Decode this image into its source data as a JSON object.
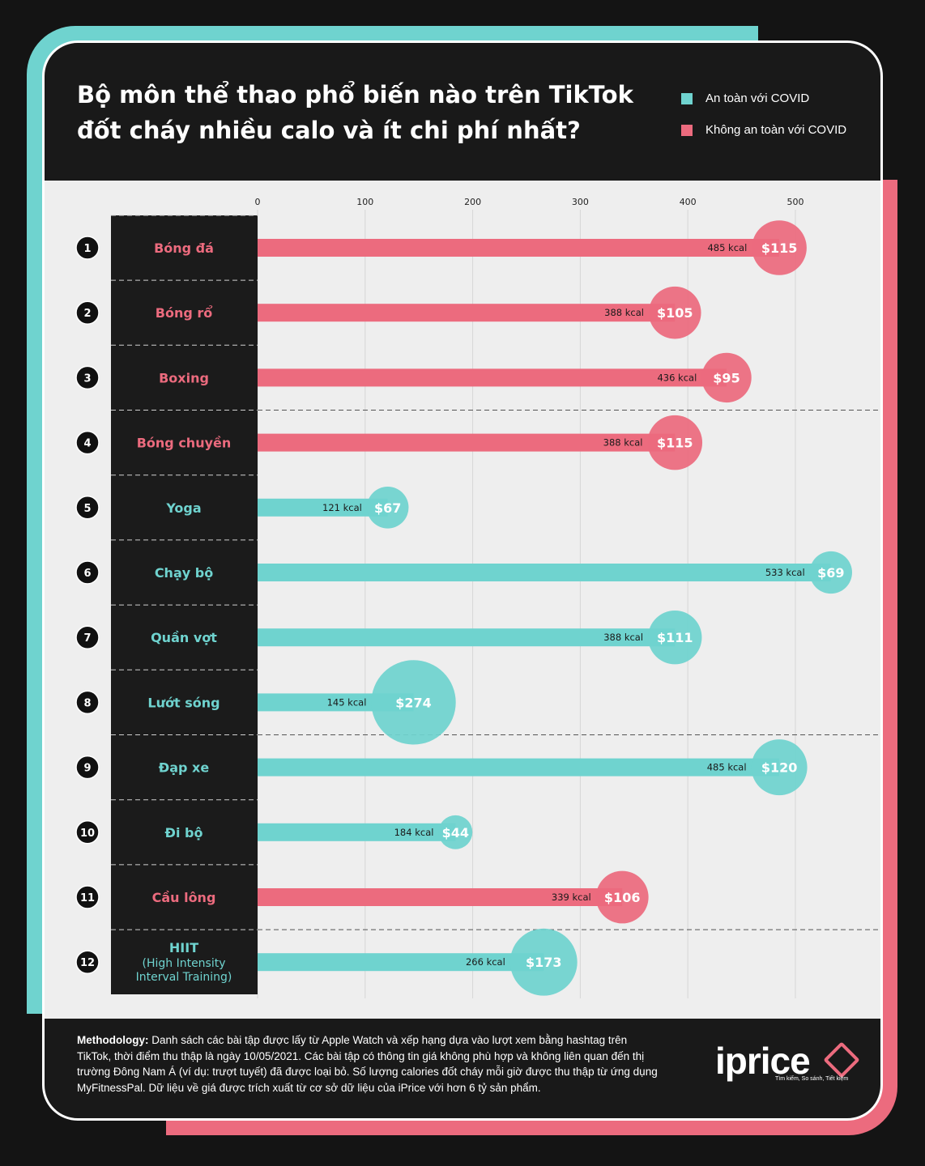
{
  "title_line1": "Bộ môn thể thao phổ biến nào trên TikTok",
  "title_line2": "đốt cháy nhiều calo và ít chi phí nhất?",
  "legend": [
    {
      "label": "An toàn với COVID",
      "color": "#6fd3cf"
    },
    {
      "label": "Không an toàn với COVID",
      "color": "#ec6b7e"
    }
  ],
  "colors": {
    "safe": "#6fd3cf",
    "unsafe": "#ec6b7e",
    "background": "#191919",
    "panel": "#eeeeee"
  },
  "chart_data": {
    "type": "bar",
    "orientation": "horizontal",
    "x_ticks": [
      0,
      100,
      200,
      300,
      400,
      500
    ],
    "xlim": [
      0,
      560
    ],
    "unit": "kcal",
    "grid": true,
    "groups_separated_after": [
      2,
      7,
      10
    ],
    "rows": [
      {
        "rank": "1",
        "name": "Bóng đá",
        "kcal": 485,
        "kcal_label": "485 kcal",
        "price": 115,
        "price_label": "$115",
        "covid_safe": false
      },
      {
        "rank": "2",
        "name": "Bóng rổ",
        "kcal": 388,
        "kcal_label": "388 kcal",
        "price": 105,
        "price_label": "$105",
        "covid_safe": false
      },
      {
        "rank": "3",
        "name": "Boxing",
        "kcal": 436,
        "kcal_label": "436 kcal",
        "price": 95,
        "price_label": "$95",
        "covid_safe": false
      },
      {
        "rank": "4",
        "name": "Bóng chuyền",
        "kcal": 388,
        "kcal_label": "388 kcal",
        "price": 115,
        "price_label": "$115",
        "covid_safe": false
      },
      {
        "rank": "5",
        "name": "Yoga",
        "kcal": 121,
        "kcal_label": "121 kcal",
        "price": 67,
        "price_label": "$67",
        "covid_safe": true
      },
      {
        "rank": "6",
        "name": "Chạy bộ",
        "kcal": 533,
        "kcal_label": "533 kcal",
        "price": 69,
        "price_label": "$69",
        "covid_safe": true
      },
      {
        "rank": "7",
        "name": "Quần vợt",
        "kcal": 388,
        "kcal_label": "388 kcal",
        "price": 111,
        "price_label": "$111",
        "covid_safe": true
      },
      {
        "rank": "8",
        "name": "Lướt sóng",
        "kcal": 145,
        "kcal_label": "145 kcal",
        "price": 274,
        "price_label": "$274",
        "covid_safe": true
      },
      {
        "rank": "9",
        "name": "Đạp xe",
        "kcal": 485,
        "kcal_label": "485 kcal",
        "price": 120,
        "price_label": "$120",
        "covid_safe": true
      },
      {
        "rank": "10",
        "name": "Đi bộ",
        "kcal": 184,
        "kcal_label": "184 kcal",
        "price": 44,
        "price_label": "$44",
        "covid_safe": true
      },
      {
        "rank": "11",
        "name": "Cầu lông",
        "kcal": 339,
        "kcal_label": "339 kcal",
        "price": 106,
        "price_label": "$106",
        "covid_safe": false
      },
      {
        "rank": "12",
        "name": "HIIT",
        "name_sub": [
          "(High Intensity",
          "Interval Training)"
        ],
        "kcal": 266,
        "kcal_label": "266 kcal",
        "price": 173,
        "price_label": "$173",
        "covid_safe": true
      }
    ]
  },
  "footer": {
    "methodology_label": "Methodology:",
    "methodology_text": " Danh sách các bài tập được lấy từ Apple Watch và  xếp hạng dựa vào lượt xem bằng hashtag trên TikTok, thời điểm thu thập là ngày 10/05/2021. Các bài tập có thông tin giá không phù hợp và không liên quan đến thị trường Đông Nam Á (ví dụ: trượt tuyết) đã được loại bỏ. Số lượng calories đốt cháy mỗi giờ được thu thập từ ứng dụng MyFitnessPal. Dữ liệu về giá được trích xuất từ cơ sở dữ liệu của iPrice với hơn 6 tỷ sản phẩm."
  },
  "logo": {
    "name": "iprice",
    "tagline": "Tìm kiếm, So sánh, Tiết kiệm",
    "icon": "price-tag-icon"
  }
}
